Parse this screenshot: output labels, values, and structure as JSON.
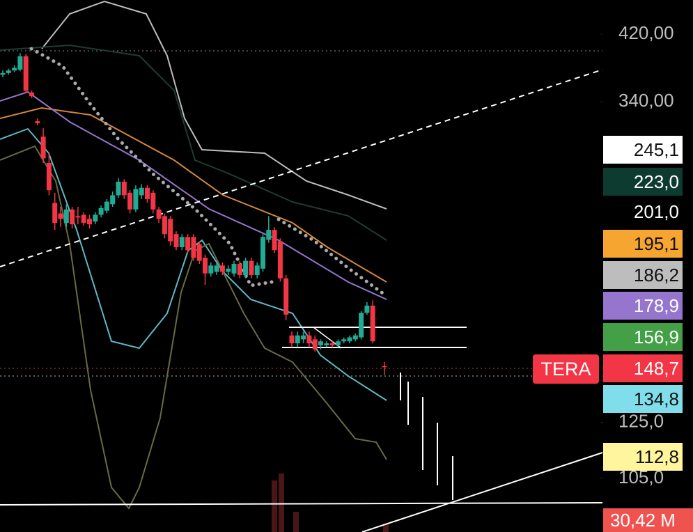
{
  "chart_data": {
    "type": "candlestick",
    "symbol": "TERA",
    "log_scale": true,
    "ylim": [
      88.8,
      467.2
    ],
    "yticks": [
      {
        "value": 420,
        "label": "420,00"
      },
      {
        "value": 340,
        "label": "340,00"
      },
      {
        "value": 125,
        "label": "125,0"
      },
      {
        "value": 105,
        "label": "105,0"
      }
    ],
    "up_color": "#22ab94",
    "down_color": "#f23645",
    "open": [
      370,
      372,
      375,
      376,
      392,
      350,
      320,
      305,
      281,
      248,
      240,
      233,
      243,
      238,
      239,
      236,
      234,
      239,
      242,
      247,
      254,
      265,
      256,
      243,
      254,
      260,
      256,
      243,
      238,
      236,
      225,
      216,
      223,
      223,
      218,
      209,
      199,
      200,
      204,
      200,
      199,
      205,
      198,
      207,
      198,
      202,
      221,
      228,
      220,
      196,
      164,
      160,
      162,
      164,
      162,
      159,
      159,
      160,
      159,
      161,
      161,
      162,
      163,
      176,
      180,
      null,
      149
    ],
    "close": [
      372,
      375,
      378,
      392,
      352,
      346,
      318,
      285,
      258,
      233,
      236,
      243,
      232,
      237,
      233,
      232,
      239,
      244,
      249,
      254,
      265,
      254,
      243,
      259,
      260,
      251,
      243,
      236,
      225,
      220,
      216,
      223,
      214,
      209,
      207,
      199,
      204,
      204,
      200,
      202,
      205,
      198,
      207,
      198,
      204,
      223,
      228,
      214,
      196,
      175,
      160,
      164,
      164,
      160,
      157,
      161,
      160,
      159,
      161,
      162,
      163,
      164,
      176,
      180,
      161,
      null,
      148.7
    ],
    "high": [
      375,
      377,
      381,
      396,
      395,
      352,
      323,
      313,
      290,
      256,
      245,
      247,
      245,
      245,
      241,
      239,
      241,
      246,
      251,
      257,
      268,
      267,
      258,
      262,
      263,
      262,
      258,
      245,
      240,
      238,
      227,
      225,
      225,
      225,
      220,
      211,
      206,
      206,
      206,
      204,
      207,
      207,
      209,
      209,
      206,
      225,
      238,
      230,
      222,
      198,
      166,
      166,
      166,
      166,
      164,
      162,
      161,
      161,
      162,
      163,
      164,
      165,
      177,
      182,
      183,
      null,
      151
    ],
    "low": [
      367,
      370,
      373,
      374,
      349,
      344,
      316,
      281,
      254,
      228,
      230,
      230,
      229,
      232,
      231,
      229,
      232,
      237,
      240,
      245,
      252,
      251,
      240,
      241,
      251,
      248,
      240,
      233,
      222,
      217,
      214,
      214,
      212,
      207,
      205,
      192,
      197,
      198,
      198,
      198,
      197,
      196,
      196,
      196,
      196,
      200,
      219,
      212,
      194,
      172,
      158,
      158,
      160,
      158,
      156,
      157,
      158,
      158,
      158,
      160,
      160,
      161,
      162,
      175,
      160,
      null,
      145
    ],
    "price_tags": [
      {
        "label": "245,1",
        "color": "#ffffff"
      },
      {
        "label": "223,0",
        "color": "#0e3b30"
      },
      {
        "label": "201,0",
        "color": "#000000"
      },
      {
        "label": "195,1",
        "color": "#f7a531"
      },
      {
        "label": "186,2",
        "color": "#bdbdbd"
      },
      {
        "label": "178,9",
        "color": "#9575cd"
      },
      {
        "label": "156,9",
        "color": "#43a047"
      },
      {
        "label": "148,7",
        "color": "#f23645"
      },
      {
        "label": "134,8",
        "color": "#80deea"
      },
      {
        "label": "112,8",
        "color": "#fff59d"
      },
      {
        "label": "30,42 M",
        "color": "#ef5350"
      }
    ]
  }
}
